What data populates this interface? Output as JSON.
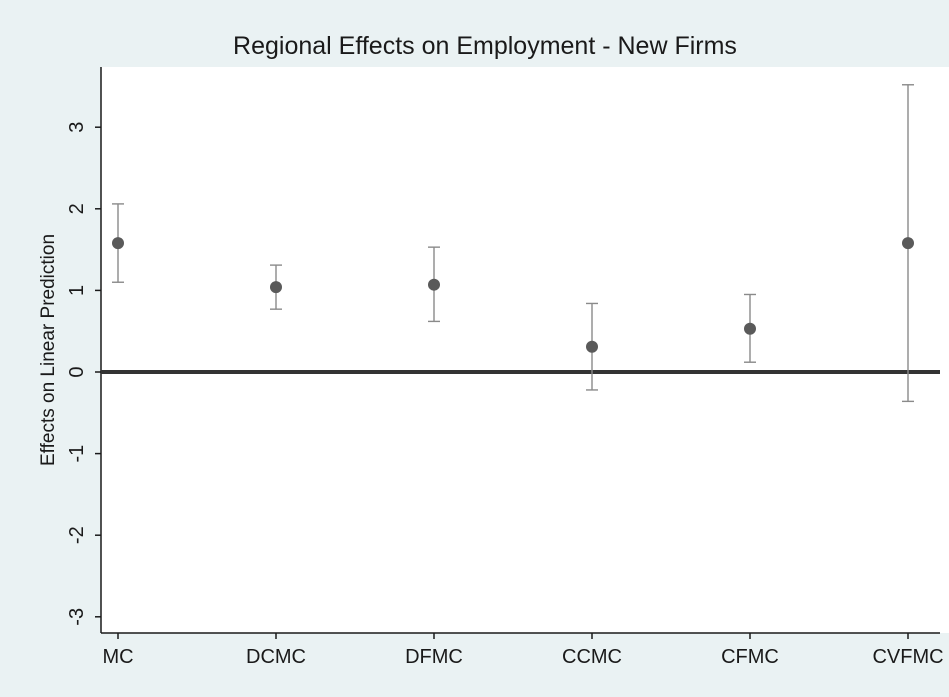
{
  "chart_data": {
    "type": "scatter",
    "title": "Regional Effects on Employment - New Firms",
    "xlabel": "",
    "ylabel": "Effects on Linear Prediction",
    "categories": [
      "MC",
      "DCMC",
      "DFMC",
      "CCMC",
      "CFMC",
      "CVFMC"
    ],
    "values": [
      1.58,
      1.04,
      1.07,
      0.31,
      0.53,
      1.58
    ],
    "ci_lower": [
      1.1,
      0.77,
      0.62,
      -0.22,
      0.12,
      -0.36
    ],
    "ci_upper": [
      2.06,
      1.31,
      1.53,
      0.84,
      0.95,
      3.52
    ],
    "ylim": [
      -3.2,
      3.7
    ],
    "yticks": [
      -3,
      -2,
      -1,
      0,
      1,
      2,
      3
    ],
    "ytick_labels": [
      "-3",
      "-2",
      "-1",
      "0",
      "1",
      "2",
      "3"
    ],
    "reference_line": 0,
    "grid": false,
    "legend": "none",
    "colors": {
      "background": "#eaf2f3",
      "plot_area": "#ffffff",
      "marker": "#5a5a5a",
      "ci_line": "#8a8a8a",
      "reference_line": "#333333",
      "axis": "#1a1a1a"
    }
  }
}
